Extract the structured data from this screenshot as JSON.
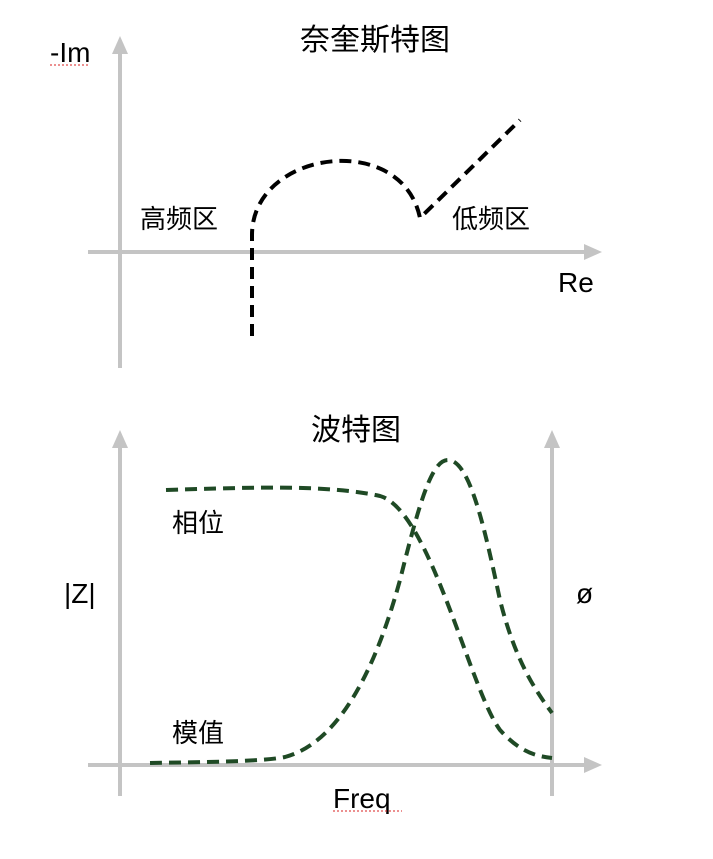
{
  "nyquist": {
    "title": "奈奎斯特图",
    "y_axis_label": "-Im",
    "x_axis_label": "Re",
    "high_freq_label": "高频区",
    "low_freq_label": "低频区",
    "curve_color": "#000000"
  },
  "bode": {
    "title": "波特图",
    "left_axis_label": "|Z|",
    "right_axis_label": "ø",
    "x_axis_label": "Freq",
    "phase_label": "相位",
    "magnitude_label": "模值",
    "curve_color": "#1f4a25"
  },
  "axis_color": "#c4c4c4"
}
